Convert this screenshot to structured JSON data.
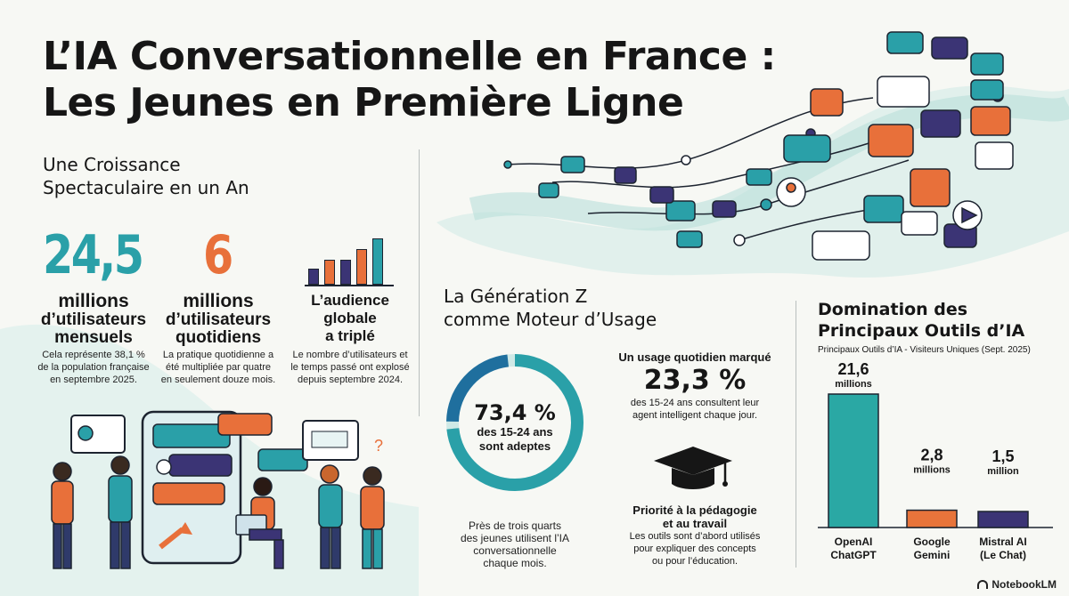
{
  "title": {
    "line1": "L’IA Conversationnelle en France :",
    "line2": "Les Jeunes en Première Ligne"
  },
  "growth": {
    "heading_line1": "Une Croissance",
    "heading_line2": "Spectaculaire en un An",
    "stat1": {
      "number": "24,5",
      "label_line1": "millions",
      "label_line2": "d’utilisateurs",
      "label_line3": "mensuels",
      "note_line1": "Cela représente 38,1 %",
      "note_line2": "de la population française",
      "note_line3": "en septembre 2025."
    },
    "stat2": {
      "number": "6",
      "label_line1": "millions",
      "label_line2": "d’utilisateurs",
      "label_line3": "quotidiens",
      "note_line1": "La pratique quotidienne a",
      "note_line2": "été multipliée par quatre",
      "note_line3": "en seulement douze mois."
    },
    "stat3": {
      "label_line1": "L’audience",
      "label_line2": "globale",
      "label_line3": "a triplé",
      "note_line1": "Le nombre d’utilisateurs et",
      "note_line2": "le temps passé ont explosé",
      "note_line3": "depuis septembre 2024."
    }
  },
  "genz": {
    "heading_line1": "La Génération Z",
    "heading_line2": "comme Moteur d’Usage",
    "donut": {
      "percent_text": "73,4 %",
      "label_line1": "des 15-24 ans",
      "label_line2": "sont adeptes",
      "fraction": 0.734
    },
    "donut_note_line1": "Près de trois quarts",
    "donut_note_line2": "des jeunes utilisent l’IA",
    "donut_note_line3": "conversationnelle",
    "donut_note_line4": "chaque mois.",
    "daily_heading": "Un usage quotidien marqué",
    "daily_value": "23,3 %",
    "daily_note_line1": "des 15-24 ans consultent leur",
    "daily_note_line2": "agent intelligent chaque jour.",
    "priority_line1": "Priorité à la pédagogie",
    "priority_line2": "et au travail",
    "priority_note_line1": "Les outils sont d’abord utilisés",
    "priority_note_line2": "pour expliquer des concepts",
    "priority_note_line3": "ou pour l’éducation."
  },
  "tools": {
    "heading_line1": "Domination des",
    "heading_line2": "Principaux Outils d’IA",
    "subtitle": "Principaux Outils d’IA - Visiteurs Uniques (Sept. 2025)"
  },
  "chart_data": {
    "type": "bar",
    "title": "Principaux Outils d’IA - Visiteurs Uniques (Sept. 2025)",
    "categories": [
      "OpenAI ChatGPT",
      "Google Gemini",
      "Mistral AI (Le Chat)"
    ],
    "values": [
      21.6,
      2.8,
      1.5
    ],
    "value_labels": [
      "21,6",
      "2,8",
      "1,5"
    ],
    "unit_labels": [
      "millions",
      "millions",
      "million"
    ],
    "cat_line1": [
      "OpenAI",
      "Google",
      "Mistral AI"
    ],
    "cat_line2": [
      "ChatGPT",
      "Gemini",
      "(Le Chat)"
    ],
    "colors": [
      "#2aa8a4",
      "#e8743b",
      "#3b3475"
    ]
  },
  "brand": "NotebookLM",
  "colors": {
    "teal": "#2aa0a8",
    "orange": "#e8703a",
    "purple": "#3b3475",
    "ink": "#161616"
  }
}
